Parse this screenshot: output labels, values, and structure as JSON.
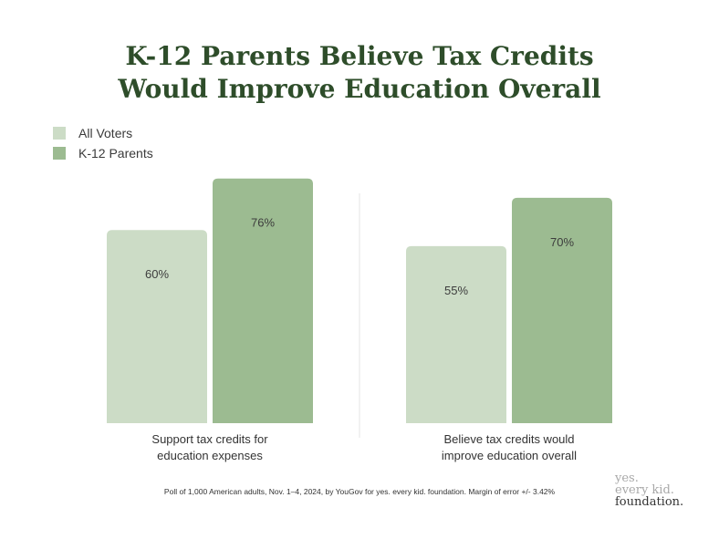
{
  "title_line1": "K-12 Parents Believe Tax Credits",
  "title_line2": "Would Improve Education Overall",
  "colors": {
    "all_voters": "#ccdcc6",
    "parents": "#9cbb91",
    "title": "#2e4d2a"
  },
  "legend": [
    {
      "label": "All Voters"
    },
    {
      "label": "K-12 Parents"
    }
  ],
  "chart_data": {
    "type": "bar",
    "title": "K-12 Parents Believe Tax Credits Would Improve Education Overall",
    "categories": [
      [
        "Support tax credits for",
        "education expenses"
      ],
      [
        "Believe tax credits would",
        "improve education overall"
      ]
    ],
    "series": [
      {
        "name": "All Voters",
        "values": [
          60,
          55
        ],
        "labels": [
          "60%",
          "55%"
        ]
      },
      {
        "name": "K-12 Parents",
        "values": [
          76,
          70
        ],
        "labels": [
          "76%",
          "70%"
        ]
      }
    ],
    "ylim": [
      0,
      100
    ],
    "legend_position": "top-left",
    "grid": false
  },
  "footnote": "Poll of 1,000 American adults, Nov. 1–4, 2024, by YouGov for yes. every kid. foundation. Margin of error +/- 3.42%",
  "logo": {
    "line1": "yes.",
    "line2": "every kid.",
    "line3": "foundation."
  }
}
